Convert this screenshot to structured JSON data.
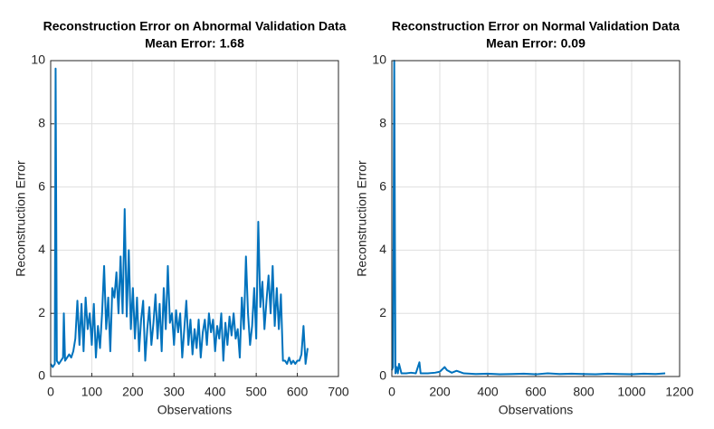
{
  "chart_data": [
    {
      "type": "line",
      "title": "Reconstruction Error on Abnormal Validation Data",
      "subtitle": "Mean Error: 1.68",
      "x_label": "Observations",
      "y_label": "Reconstruction Error",
      "xlim": [
        0,
        700
      ],
      "xticks": [
        0,
        100,
        200,
        300,
        400,
        500,
        600,
        700
      ],
      "ylim": [
        0,
        10
      ],
      "yticks": [
        0,
        2,
        4,
        6,
        8,
        10
      ],
      "grid": true,
      "series": [
        {
          "color": "#0072bd",
          "x": [
            0,
            5,
            10,
            12,
            15,
            20,
            25,
            30,
            32,
            35,
            40,
            45,
            50,
            55,
            60,
            65,
            70,
            75,
            80,
            85,
            90,
            95,
            100,
            105,
            110,
            115,
            120,
            125,
            130,
            135,
            140,
            145,
            150,
            155,
            160,
            165,
            170,
            175,
            180,
            185,
            190,
            195,
            200,
            205,
            210,
            215,
            220,
            225,
            230,
            235,
            240,
            245,
            250,
            255,
            260,
            265,
            270,
            275,
            280,
            285,
            290,
            295,
            300,
            305,
            310,
            315,
            320,
            325,
            330,
            335,
            340,
            345,
            350,
            355,
            360,
            365,
            370,
            375,
            380,
            385,
            390,
            395,
            400,
            405,
            410,
            415,
            420,
            425,
            430,
            435,
            440,
            445,
            450,
            455,
            460,
            465,
            470,
            475,
            480,
            485,
            490,
            495,
            500,
            505,
            510,
            515,
            520,
            525,
            530,
            535,
            540,
            545,
            550,
            555,
            560,
            565,
            570,
            575,
            580,
            585,
            590,
            595,
            600,
            605,
            610,
            615,
            620,
            625
          ],
          "values": [
            0.4,
            0.3,
            0.4,
            9.75,
            0.5,
            0.4,
            0.5,
            0.6,
            2.0,
            0.5,
            0.6,
            0.7,
            0.6,
            0.8,
            1.2,
            2.4,
            1.0,
            2.3,
            0.8,
            2.5,
            1.5,
            2.0,
            1.0,
            2.3,
            0.6,
            1.6,
            0.9,
            2.0,
            3.5,
            1.5,
            2.5,
            0.8,
            2.8,
            2.5,
            3.3,
            2.0,
            3.8,
            2.0,
            5.3,
            1.9,
            4.0,
            1.5,
            2.8,
            1.2,
            2.5,
            0.8,
            1.8,
            2.4,
            0.5,
            1.5,
            2.2,
            1.0,
            1.7,
            2.6,
            1.2,
            2.3,
            0.8,
            2.8,
            1.5,
            3.5,
            1.7,
            2.0,
            1.0,
            2.1,
            1.4,
            2.0,
            0.6,
            1.5,
            2.4,
            1.0,
            1.8,
            0.7,
            1.5,
            0.9,
            1.8,
            0.6,
            1.4,
            1.8,
            1.0,
            2.0,
            1.4,
            1.8,
            0.8,
            1.6,
            1.2,
            2.0,
            0.5,
            1.7,
            1.0,
            1.9,
            1.3,
            2.0,
            1.2,
            1.5,
            0.6,
            2.5,
            1.5,
            3.8,
            2.0,
            1.0,
            1.6,
            2.8,
            1.2,
            4.9,
            2.2,
            3.0,
            1.5,
            2.4,
            3.2,
            2.0,
            3.5,
            1.6,
            2.8,
            1.5,
            2.6,
            0.5,
            0.5,
            0.4,
            0.6,
            0.4,
            0.5,
            0.4,
            0.5,
            0.5,
            0.7,
            1.6,
            0.4,
            0.9
          ]
        }
      ]
    },
    {
      "type": "line",
      "title": "Reconstruction Error on Normal Validation Data",
      "subtitle": "Mean Error: 0.09",
      "x_label": "Observations",
      "y_label": "Reconstruction Error",
      "xlim": [
        0,
        1200
      ],
      "xticks": [
        0,
        200,
        400,
        600,
        800,
        1000,
        1200
      ],
      "ylim": [
        0,
        10
      ],
      "yticks": [
        0,
        2,
        4,
        6,
        8,
        10
      ],
      "grid": true,
      "series": [
        {
          "color": "#0072bd",
          "x": [
            0,
            5,
            10,
            15,
            20,
            25,
            30,
            40,
            60,
            80,
            100,
            115,
            120,
            150,
            180,
            200,
            220,
            230,
            250,
            270,
            300,
            350,
            400,
            450,
            500,
            550,
            600,
            650,
            700,
            750,
            800,
            850,
            900,
            950,
            1000,
            1050,
            1100,
            1140
          ],
          "values": [
            0.2,
            0.3,
            10,
            0.1,
            0.3,
            0.1,
            0.4,
            0.1,
            0.1,
            0.12,
            0.1,
            0.45,
            0.1,
            0.1,
            0.12,
            0.15,
            0.3,
            0.2,
            0.12,
            0.18,
            0.1,
            0.08,
            0.09,
            0.07,
            0.08,
            0.09,
            0.07,
            0.1,
            0.08,
            0.09,
            0.08,
            0.07,
            0.09,
            0.08,
            0.07,
            0.09,
            0.08,
            0.1
          ]
        }
      ]
    }
  ]
}
